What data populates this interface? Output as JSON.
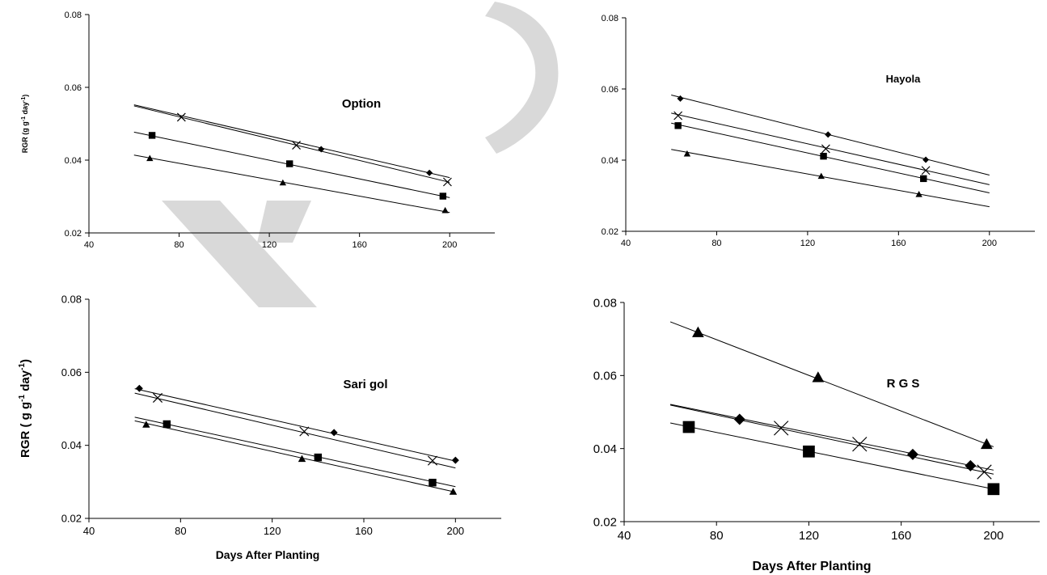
{
  "chart_data": [
    {
      "type": "scatter",
      "title": "Option",
      "xlabel": "",
      "ylabel": "RGR (g g-1 day-1)",
      "xlim": [
        40,
        220
      ],
      "ylim": [
        0.02,
        0.08
      ],
      "xticks": [
        "40",
        "80",
        "120",
        "160",
        "200"
      ],
      "yticks": [
        "0.02",
        "0.04",
        "0.06",
        "0.08"
      ],
      "grid": false,
      "series": [
        {
          "marker": "diamond",
          "points": [
            [
              143,
              0.043
            ],
            [
              191,
              0.0365
            ]
          ],
          "fit": [
            [
              60,
              0.0552
            ],
            [
              200,
              0.0352
            ]
          ]
        },
        {
          "marker": "cross",
          "points": [
            [
              81,
              0.0518
            ],
            [
              132,
              0.0441
            ],
            [
              199,
              0.034
            ]
          ],
          "fit": [
            [
              60,
              0.0549
            ],
            [
              200,
              0.0339
            ]
          ]
        },
        {
          "marker": "square",
          "points": [
            [
              68,
              0.0468
            ],
            [
              129,
              0.039
            ],
            [
              197,
              0.0301
            ]
          ],
          "fit": [
            [
              60,
              0.0477
            ],
            [
              200,
              0.0297
            ]
          ]
        },
        {
          "marker": "triangle",
          "points": [
            [
              67,
              0.0405
            ],
            [
              126,
              0.0338
            ],
            [
              198,
              0.0262
            ]
          ],
          "fit": [
            [
              60,
              0.0414
            ],
            [
              200,
              0.0256
            ]
          ]
        }
      ]
    },
    {
      "type": "scatter",
      "title": "Hayola",
      "xlabel": "",
      "ylabel": "",
      "xlim": [
        40,
        220
      ],
      "ylim": [
        0.02,
        0.08
      ],
      "xticks": [
        "40",
        "80",
        "120",
        "160",
        "200"
      ],
      "yticks": [
        "0.02",
        "0.04",
        "0.06",
        "0.08"
      ],
      "grid": false,
      "series": [
        {
          "marker": "diamond",
          "points": [
            [
              64,
              0.0573
            ],
            [
              129,
              0.0472
            ],
            [
              172,
              0.0401
            ]
          ],
          "fit": [
            [
              60,
              0.0583
            ],
            [
              200,
              0.0358
            ]
          ]
        },
        {
          "marker": "cross",
          "points": [
            [
              63,
              0.0525
            ],
            [
              128,
              0.0432
            ],
            [
              172,
              0.0371
            ]
          ],
          "fit": [
            [
              60,
              0.0532
            ],
            [
              200,
              0.0331
            ]
          ]
        },
        {
          "marker": "square",
          "points": [
            [
              63,
              0.0497
            ],
            [
              127,
              0.0411
            ],
            [
              171,
              0.0348
            ]
          ],
          "fit": [
            [
              60,
              0.0504
            ],
            [
              200,
              0.0308
            ]
          ]
        },
        {
          "marker": "triangle",
          "points": [
            [
              67,
              0.0418
            ],
            [
              126,
              0.0355
            ],
            [
              169,
              0.0304
            ]
          ],
          "fit": [
            [
              60,
              0.043
            ],
            [
              200,
              0.0269
            ]
          ]
        }
      ]
    },
    {
      "type": "scatter",
      "title": "Sari gol",
      "xlabel": "Days After Planting",
      "ylabel": "RGR ( g g-1 day-1)",
      "xlim": [
        40,
        220
      ],
      "ylim": [
        0.02,
        0.08
      ],
      "xticks": [
        "40",
        "80",
        "120",
        "160",
        "200"
      ],
      "yticks": [
        "0.02",
        "0.04",
        "0.06",
        "0.08"
      ],
      "grid": false,
      "series": [
        {
          "marker": "diamond",
          "points": [
            [
              62,
              0.0556
            ],
            [
              147,
              0.0435
            ],
            [
              200,
              0.0359
            ]
          ],
          "fit": [
            [
              60,
              0.0555
            ],
            [
              200,
              0.0357
            ]
          ]
        },
        {
          "marker": "cross",
          "points": [
            [
              70,
              0.053
            ],
            [
              134,
              0.0438
            ],
            [
              190,
              0.0358
            ]
          ],
          "fit": [
            [
              60,
              0.0543
            ],
            [
              200,
              0.0338
            ]
          ]
        },
        {
          "marker": "square",
          "points": [
            [
              74,
              0.0458
            ],
            [
              140,
              0.0367
            ],
            [
              190,
              0.0298
            ]
          ],
          "fit": [
            [
              60,
              0.0477
            ],
            [
              200,
              0.0287
            ]
          ]
        },
        {
          "marker": "triangle",
          "points": [
            [
              65,
              0.0457
            ],
            [
              133,
              0.0363
            ],
            [
              199,
              0.0273
            ]
          ],
          "fit": [
            [
              60,
              0.0467
            ],
            [
              200,
              0.0272
            ]
          ]
        }
      ]
    },
    {
      "type": "scatter",
      "title": "R G S",
      "xlabel": "Days After Planting",
      "ylabel": "",
      "xlim": [
        40,
        220
      ],
      "ylim": [
        0.02,
        0.08
      ],
      "xticks": [
        "40",
        "80",
        "120",
        "160",
        "200"
      ],
      "yticks": [
        "0.02",
        "0.04",
        "0.06",
        "0.08"
      ],
      "grid": false,
      "series": [
        {
          "marker": "triangle",
          "points": [
            [
              72,
              0.0718
            ],
            [
              124,
              0.0595
            ],
            [
              197,
              0.0412
            ]
          ],
          "fit": [
            [
              60,
              0.0747
            ],
            [
              200,
              0.0405
            ]
          ]
        },
        {
          "marker": "diamond",
          "points": [
            [
              90,
              0.048
            ],
            [
              165,
              0.0384
            ],
            [
              190,
              0.0353
            ]
          ],
          "fit": [
            [
              60,
              0.0521
            ],
            [
              200,
              0.0341
            ]
          ]
        },
        {
          "marker": "cross",
          "points": [
            [
              108,
              0.0456
            ],
            [
              142,
              0.0412
            ],
            [
              196,
              0.0336
            ]
          ],
          "fit": [
            [
              60,
              0.0519
            ],
            [
              200,
              0.033
            ]
          ]
        },
        {
          "marker": "square",
          "points": [
            [
              68,
              0.0459
            ],
            [
              120,
              0.0392
            ],
            [
              200,
              0.0289
            ]
          ],
          "fit": [
            [
              60,
              0.047
            ],
            [
              200,
              0.0289
            ]
          ]
        }
      ]
    }
  ]
}
